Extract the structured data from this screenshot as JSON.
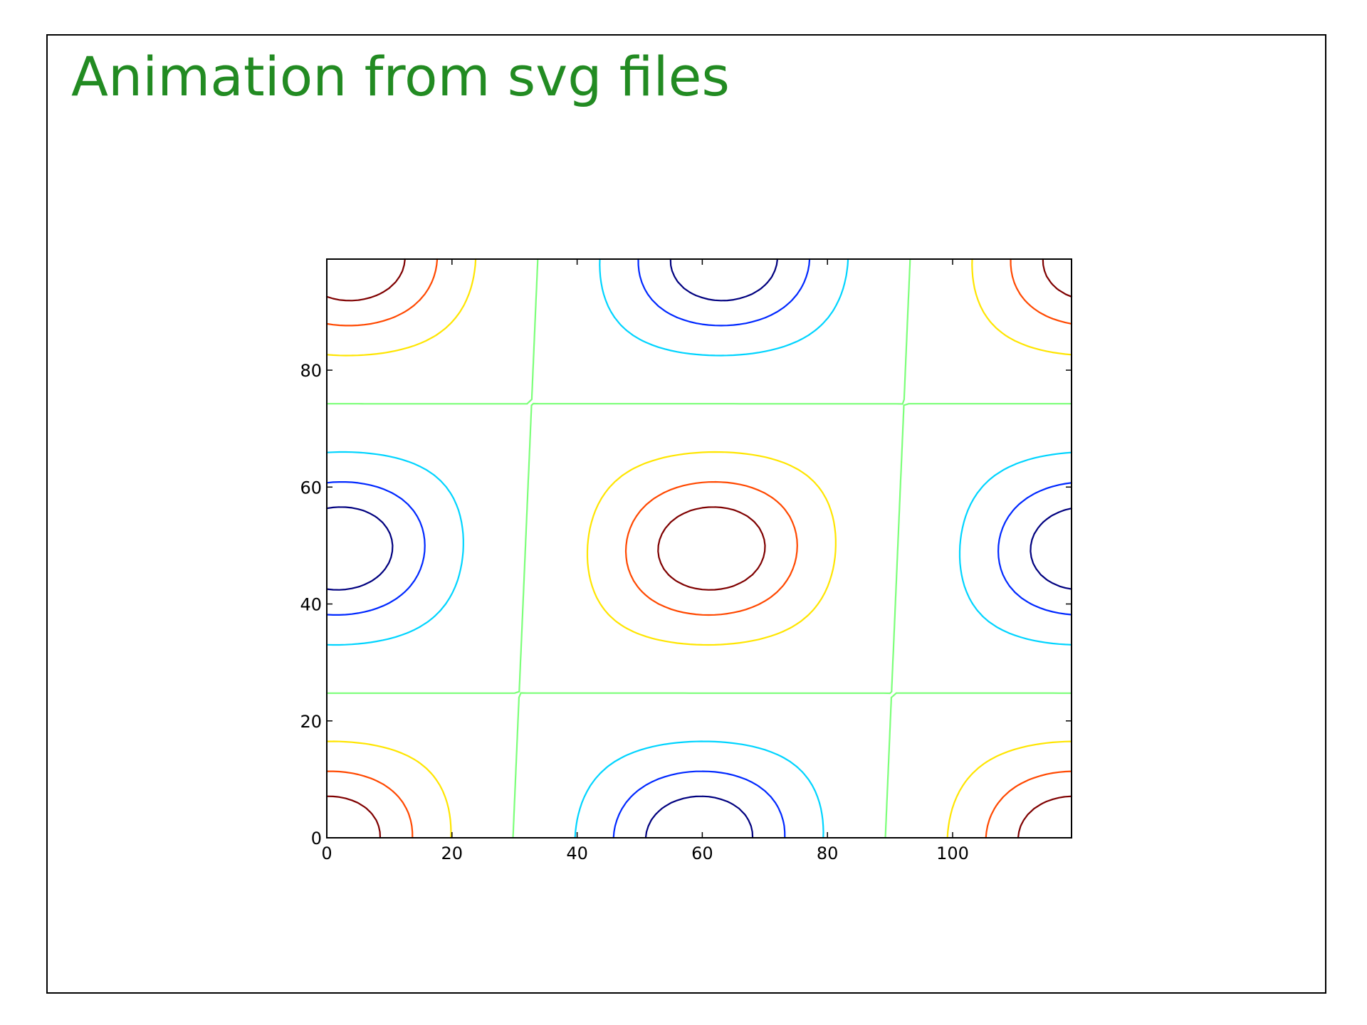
{
  "slide": {
    "title": "Animation from svg files",
    "title_color": "#228b22"
  },
  "chart_data": {
    "type": "contour",
    "title": "",
    "xlabel": "",
    "ylabel": "",
    "xlim": [
      0,
      119
    ],
    "ylim": [
      0,
      99
    ],
    "x_ticks": [
      0,
      20,
      40,
      60,
      80,
      100
    ],
    "y_ticks": [
      0,
      20,
      40,
      60,
      80
    ],
    "grid": false,
    "colormap": "jet",
    "field": {
      "function": "sin(2*pi*(x - 29.75)/119) * cos(2*pi*(y - 49.5)/99)",
      "x_samples": 120,
      "y_samples": 100,
      "x_shift_per_row": 0.04
    },
    "levels": [
      {
        "value": -0.9,
        "color": "#00007f"
      },
      {
        "value": -0.75,
        "color": "#0028ff"
      },
      {
        "value": -0.5,
        "color": "#00d4ff"
      },
      {
        "value": 0.0,
        "color": "#7cff79"
      },
      {
        "value": 0.5,
        "color": "#ffe500"
      },
      {
        "value": 0.75,
        "color": "#ff4800"
      },
      {
        "value": 0.9,
        "color": "#7f0000"
      }
    ]
  }
}
